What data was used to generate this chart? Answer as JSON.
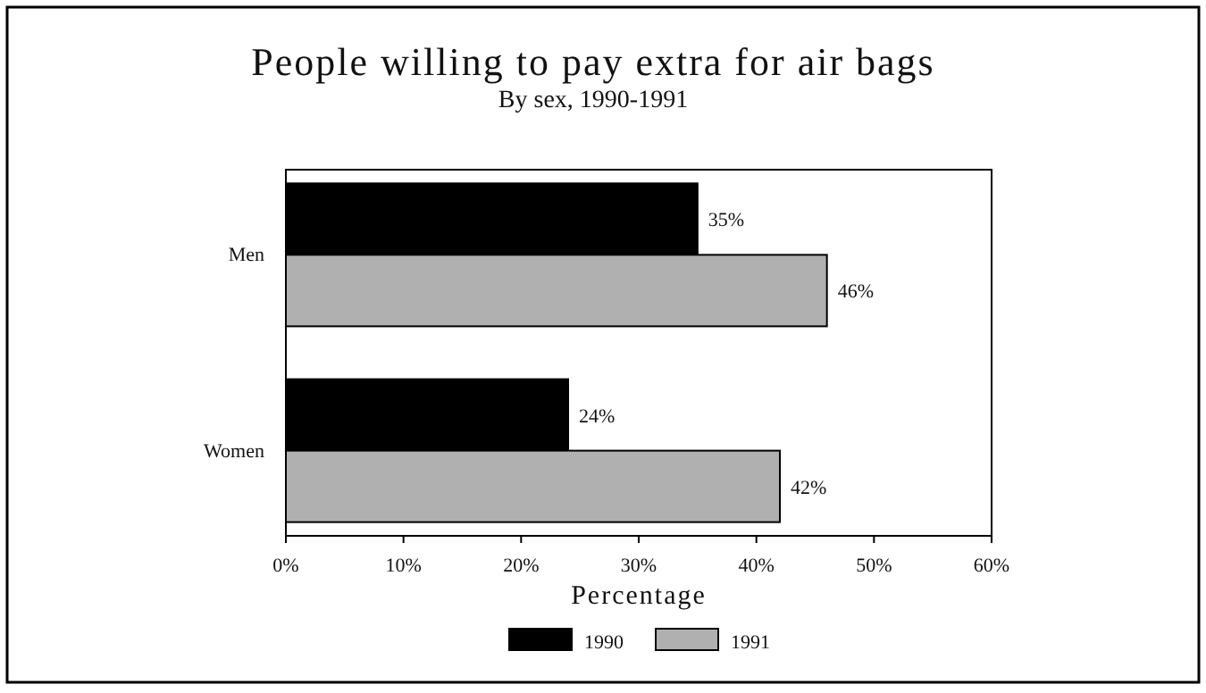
{
  "chart_data": {
    "type": "bar",
    "orientation": "horizontal",
    "title": "People willing to pay extra for air bags",
    "subtitle": "By sex, 1990-1991",
    "xlabel": "Percentage",
    "categories": [
      "Men",
      "Women"
    ],
    "series": [
      {
        "name": "1990",
        "color": "#000000",
        "values": [
          35,
          24
        ],
        "value_labels": [
          "35%",
          "24%"
        ]
      },
      {
        "name": "1991",
        "color": "#b0b0b0",
        "values": [
          46,
          42
        ],
        "value_labels": [
          "46%",
          "42%"
        ]
      }
    ],
    "xlim": [
      0,
      60
    ],
    "xticks": [
      {
        "value": 0,
        "label": "0%"
      },
      {
        "value": 10,
        "label": "10%"
      },
      {
        "value": 20,
        "label": "20%"
      },
      {
        "value": 30,
        "label": "30%"
      },
      {
        "value": 40,
        "label": "40%"
      },
      {
        "value": 50,
        "label": "50%"
      },
      {
        "value": 60,
        "label": "60%"
      }
    ],
    "grid": false,
    "legend": "bottom"
  }
}
